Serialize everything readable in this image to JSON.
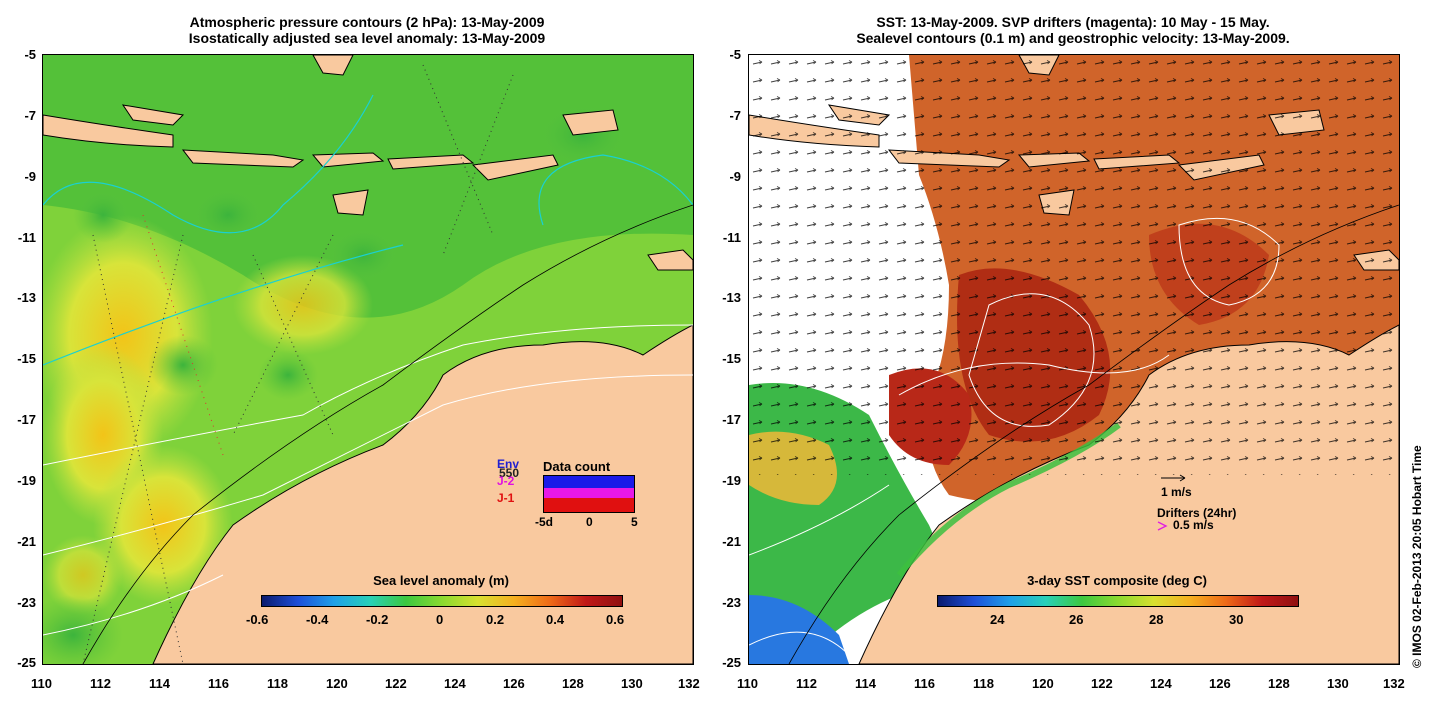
{
  "left_panel": {
    "title_line1": "Atmospheric pressure contours (2 hPa): 13-May-2009",
    "title_line2": "Isostatically adjusted sea level anomaly: 13-May-2009",
    "colorbar_title": "Sea level anomaly (m)",
    "colorbar_ticks": [
      "-0.6",
      "-0.4",
      "-0.2",
      "0",
      "0.2",
      "0.4",
      "0.6"
    ],
    "legend": {
      "sat1": "Env",
      "sat1b": "550",
      "sat2": "J-2",
      "sat3": "J-1",
      "data_count_title": "Data count",
      "axis_labels": [
        "-5d",
        "0",
        "5"
      ]
    }
  },
  "right_panel": {
    "title_line1": "SST: 13-May-2009. SVP drifters (magenta): 10 May - 15 May.",
    "title_line2": "Sealevel contours (0.1 m) and geostrophic velocity: 13-May-2009.",
    "colorbar_title": "3-day SST composite (deg C)",
    "colorbar_ticks": [
      "24",
      "26",
      "28",
      "30"
    ],
    "velocity_scale": "1 m/s",
    "drifters_label": "Drifters (24hr)",
    "drifter_scale": "0.5 m/s"
  },
  "axes": {
    "x_ticks": [
      "110",
      "112",
      "114",
      "116",
      "118",
      "120",
      "122",
      "124",
      "126",
      "128",
      "130",
      "132"
    ],
    "y_ticks": [
      "-5",
      "-7",
      "-9",
      "-11",
      "-13",
      "-15",
      "-17",
      "-19",
      "-21",
      "-23",
      "-25"
    ],
    "lon_range": [
      110,
      132
    ],
    "lat_range": [
      -5,
      -25
    ]
  },
  "credit": "© IMOS 02-Feb-2013 20:05 Hobart Time",
  "colors": {
    "land": "#f9c99f",
    "sla_background": "#7fd23a",
    "sst_background": "#c8501e"
  }
}
